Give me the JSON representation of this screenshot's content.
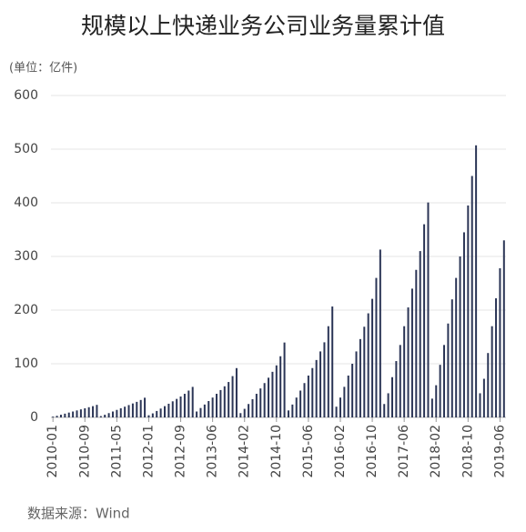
{
  "chart_data": {
    "type": "bar",
    "title": "规模以上快递业务公司业务量累计值",
    "unit_label": "(单位：亿件)",
    "source": "数据来源：Wind",
    "color": "#2b3556",
    "grid": true,
    "ylim": [
      0,
      600
    ],
    "yticks": [
      0,
      100,
      200,
      300,
      400,
      500,
      600
    ],
    "categories": [
      "2010-01",
      null,
      null,
      null,
      null,
      null,
      null,
      null,
      "2010-09",
      null,
      null,
      null,
      null,
      null,
      null,
      null,
      "2011-05",
      null,
      null,
      null,
      null,
      null,
      null,
      null,
      "2012-01",
      null,
      null,
      null,
      null,
      null,
      null,
      null,
      "2012-09",
      null,
      null,
      null,
      null,
      null,
      null,
      null,
      "2013-06",
      null,
      null,
      null,
      null,
      null,
      null,
      null,
      "2014-02",
      null,
      null,
      null,
      null,
      null,
      null,
      null,
      "2014-10",
      null,
      null,
      null,
      null,
      null,
      null,
      null,
      "2015-06",
      null,
      null,
      null,
      null,
      null,
      null,
      null,
      "2016-02",
      null,
      null,
      null,
      null,
      null,
      null,
      null,
      "2016-10",
      null,
      null,
      null,
      null,
      null,
      null,
      null,
      "2017-06",
      null,
      null,
      null,
      null,
      null,
      null,
      null,
      "2018-02",
      null,
      null,
      null,
      null,
      null,
      null,
      null,
      "2018-10",
      null,
      null,
      null,
      null,
      null,
      null,
      null,
      "2019-06",
      null
    ],
    "values": [
      1.5,
      3,
      5,
      7,
      9,
      11,
      13,
      15,
      17,
      19,
      21,
      23.4,
      2.5,
      5,
      8,
      11,
      14,
      17,
      20,
      23,
      26,
      29,
      32.5,
      36.7,
      4,
      7.5,
      12,
      16.5,
      21,
      25.5,
      30,
      34.5,
      39,
      44,
      50,
      56.9,
      11,
      17.5,
      24,
      30.5,
      37,
      44,
      51,
      58,
      66,
      77,
      91.9,
      8,
      16,
      25,
      34,
      44,
      54,
      64,
      74,
      85,
      97,
      114,
      139.6,
      13,
      24,
      37,
      50,
      64,
      78,
      92,
      107,
      123,
      140,
      170,
      206.7,
      20,
      37,
      57,
      78,
      100,
      123,
      146,
      169,
      194,
      221,
      260,
      312.8,
      25,
      45,
      75,
      105,
      135,
      170,
      205,
      240,
      275,
      310,
      360,
      400.6,
      35,
      60,
      98,
      135,
      175,
      220,
      260,
      300,
      345,
      395,
      450,
      507.1,
      45,
      72,
      120,
      170,
      222,
      278,
      330
    ]
  }
}
